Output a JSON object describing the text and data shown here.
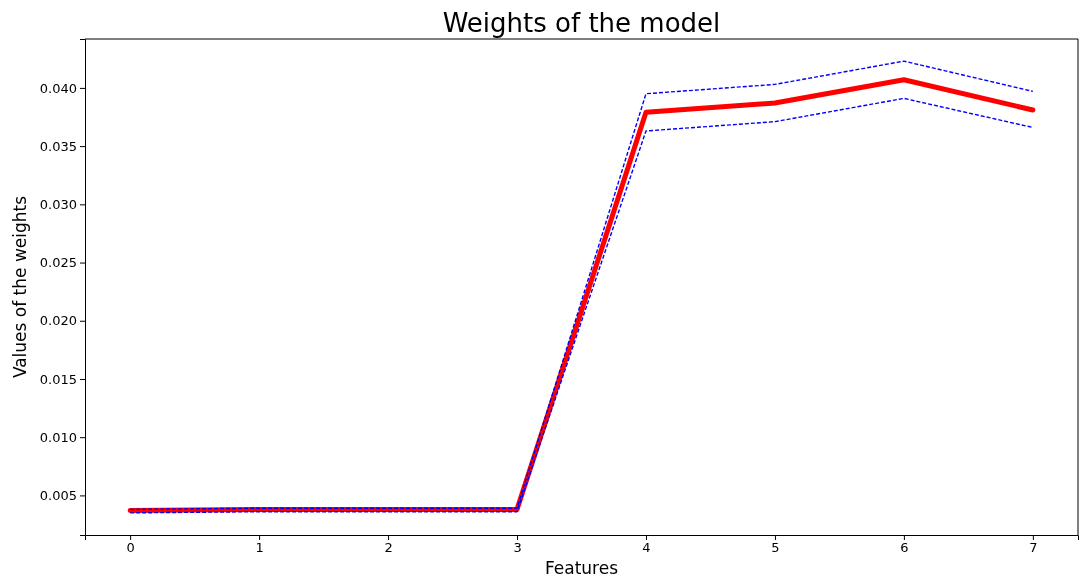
{
  "chart_data": {
    "type": "line",
    "title": "Weights of the model",
    "xlabel": "Features",
    "ylabel": "Values of the weights",
    "x": [
      0,
      1,
      2,
      3,
      4,
      5,
      6,
      7
    ],
    "series": [
      {
        "color": "#ff0000",
        "line_style": "solid",
        "values": [
          0.0037,
          0.0038,
          0.0038,
          0.0038,
          0.0379,
          0.0387,
          0.0407,
          0.0381
        ]
      },
      {
        "color": "#0000ff",
        "line_style": "dashed",
        "values": [
          0.0038,
          0.0039,
          0.0039,
          0.0039,
          0.0395,
          0.0403,
          0.0423,
          0.0397
        ]
      },
      {
        "color": "#0000ff",
        "line_style": "dashed",
        "values": [
          0.0035,
          0.0036,
          0.0036,
          0.0036,
          0.0363,
          0.0371,
          0.0391,
          0.0366
        ]
      }
    ],
    "xlim": [
      -0.35,
      7.35
    ],
    "xticks": [
      0,
      1,
      2,
      3,
      4,
      5,
      6,
      7
    ],
    "ylim": [
      0.0016,
      0.0442
    ],
    "yticks": [
      {
        "value": 0.005,
        "label": "0.005"
      },
      {
        "value": 0.01,
        "label": "0.010"
      },
      {
        "value": 0.015,
        "label": "0.015"
      },
      {
        "value": 0.02,
        "label": "0.020"
      },
      {
        "value": 0.025,
        "label": "0.025"
      },
      {
        "value": 0.03,
        "label": "0.030"
      },
      {
        "value": 0.035,
        "label": "0.035"
      },
      {
        "value": 0.04,
        "label": "0.040"
      }
    ],
    "grid": false,
    "marker": "none"
  }
}
